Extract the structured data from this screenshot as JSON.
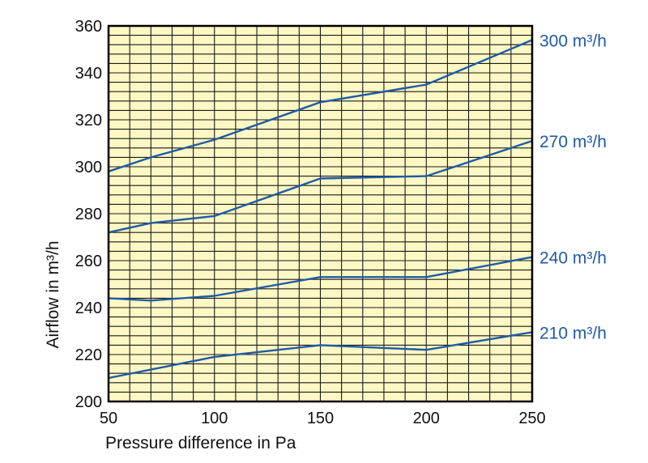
{
  "chart_data": {
    "type": "line",
    "title": "",
    "xlabel": "Pressure difference in Pa",
    "ylabel": "Airflow in m³/h",
    "xlim": [
      50,
      250
    ],
    "ylim": [
      200,
      360
    ],
    "x_ticks": [
      50,
      100,
      150,
      200,
      250
    ],
    "y_ticks": [
      200,
      220,
      240,
      260,
      280,
      300,
      320,
      340,
      360
    ],
    "x_tick_labels": [
      "50",
      "100",
      "150",
      "200",
      "250"
    ],
    "y_tick_labels": [
      "200",
      "220",
      "240",
      "260",
      "280",
      "300",
      "320",
      "340",
      "360"
    ],
    "grid": true,
    "grid_x_step": 10,
    "grid_y_step": 4,
    "colors": {
      "plot_background": "#fdf8c4",
      "grid": "#1a1a1a",
      "frame": "#000000",
      "series": "#1f5aa6"
    },
    "series": [
      {
        "name": "210 m³/h",
        "label": "210 m³/h",
        "x": [
          50,
          100,
          150,
          200,
          250
        ],
        "y": [
          210,
          219,
          224,
          222,
          229.5
        ]
      },
      {
        "name": "240 m³/h",
        "label": "240 m³/h",
        "x": [
          50,
          70,
          100,
          150,
          200,
          250
        ],
        "y": [
          244,
          243,
          245,
          253,
          253,
          261.5
        ]
      },
      {
        "name": "270 m³/h",
        "label": "270 m³/h",
        "x": [
          50,
          70,
          100,
          150,
          200,
          250
        ],
        "y": [
          272,
          276,
          279,
          295,
          296,
          311
        ]
      },
      {
        "name": "300 m³/h",
        "label": "300 m³/h",
        "x": [
          50,
          70,
          100,
          150,
          200,
          250
        ],
        "y": [
          298,
          304,
          311.5,
          327.5,
          335,
          354
        ]
      }
    ]
  }
}
